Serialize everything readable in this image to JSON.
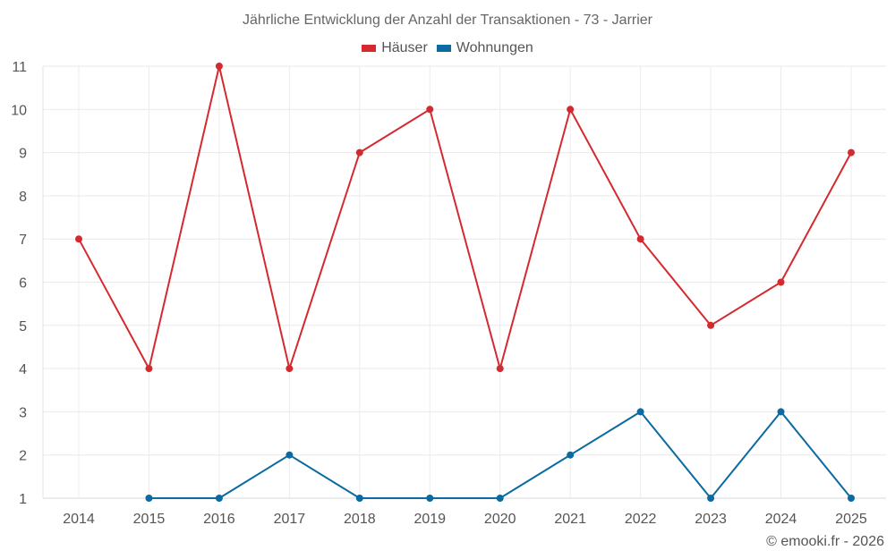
{
  "chart_data": {
    "type": "line",
    "title": "Jährliche Entwicklung der Anzahl der Transaktionen - 73 - Jarrier",
    "x": [
      "2014",
      "2015",
      "2016",
      "2017",
      "2018",
      "2019",
      "2020",
      "2021",
      "2022",
      "2023",
      "2024",
      "2025"
    ],
    "series": [
      {
        "name": "Häuser",
        "color": "#d42a2f",
        "values": [
          7,
          4,
          11,
          4,
          9,
          10,
          4,
          10,
          7,
          5,
          6,
          9
        ]
      },
      {
        "name": "Wohnungen",
        "color": "#0a6aa1",
        "values": [
          null,
          1,
          1,
          2,
          1,
          1,
          1,
          2,
          3,
          1,
          3,
          1
        ]
      }
    ],
    "yticks": [
      "1",
      "2",
      "3",
      "4",
      "5",
      "6",
      "7",
      "8",
      "9",
      "10",
      "11"
    ],
    "ylim": [
      1,
      11
    ],
    "grid": true,
    "legend_position": "top-center"
  },
  "watermark": "© emooki.fr - 2026"
}
